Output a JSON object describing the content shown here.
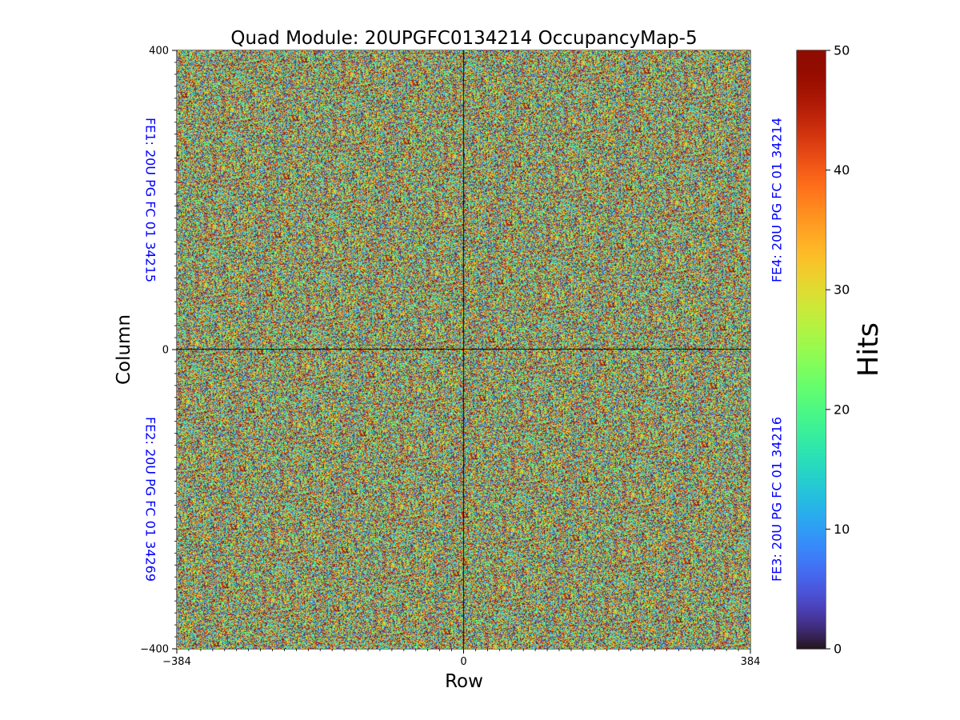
{
  "chart_data": {
    "type": "heatmap",
    "title": "Quad Module: 20UPGFC0134214 OccupancyMap-5",
    "xlabel": "Row",
    "ylabel": "Column",
    "xlim": [
      -384,
      384
    ],
    "ylim": [
      -400,
      400
    ],
    "x_ticks": [
      -384,
      0,
      384
    ],
    "x_tick_labels": [
      "−384",
      "0",
      "384"
    ],
    "y_ticks": [
      -400,
      0,
      400
    ],
    "y_tick_labels": [
      "−400",
      "0",
      "400"
    ],
    "grid": false,
    "divider_lines": {
      "x": 0,
      "y": 0
    },
    "colormap": "turbo",
    "value_range": [
      0,
      50
    ],
    "distribution": "uniform random noise",
    "colorbar": {
      "label": "Hits",
      "range": [
        0,
        50
      ],
      "ticks": [
        0,
        10,
        20,
        30,
        40,
        50
      ],
      "tick_labels": [
        "0",
        "10",
        "20",
        "30",
        "40",
        "50"
      ],
      "placement": "right"
    },
    "annotations": [
      {
        "id": "fe1",
        "text": "FE1: 20U PG FC 01 34215",
        "quadrant": "top-left",
        "side": "left"
      },
      {
        "id": "fe2",
        "text": "FE2: 20U PG FC 01 34269",
        "quadrant": "bottom-left",
        "side": "left"
      },
      {
        "id": "fe3",
        "text": "FE3: 20U PG FC 01 34216",
        "quadrant": "bottom-right",
        "side": "right"
      },
      {
        "id": "fe4",
        "text": "FE4: 20U PG FC 01 34214",
        "quadrant": "top-right",
        "side": "right"
      }
    ],
    "annotation_color": "#0000ff"
  }
}
